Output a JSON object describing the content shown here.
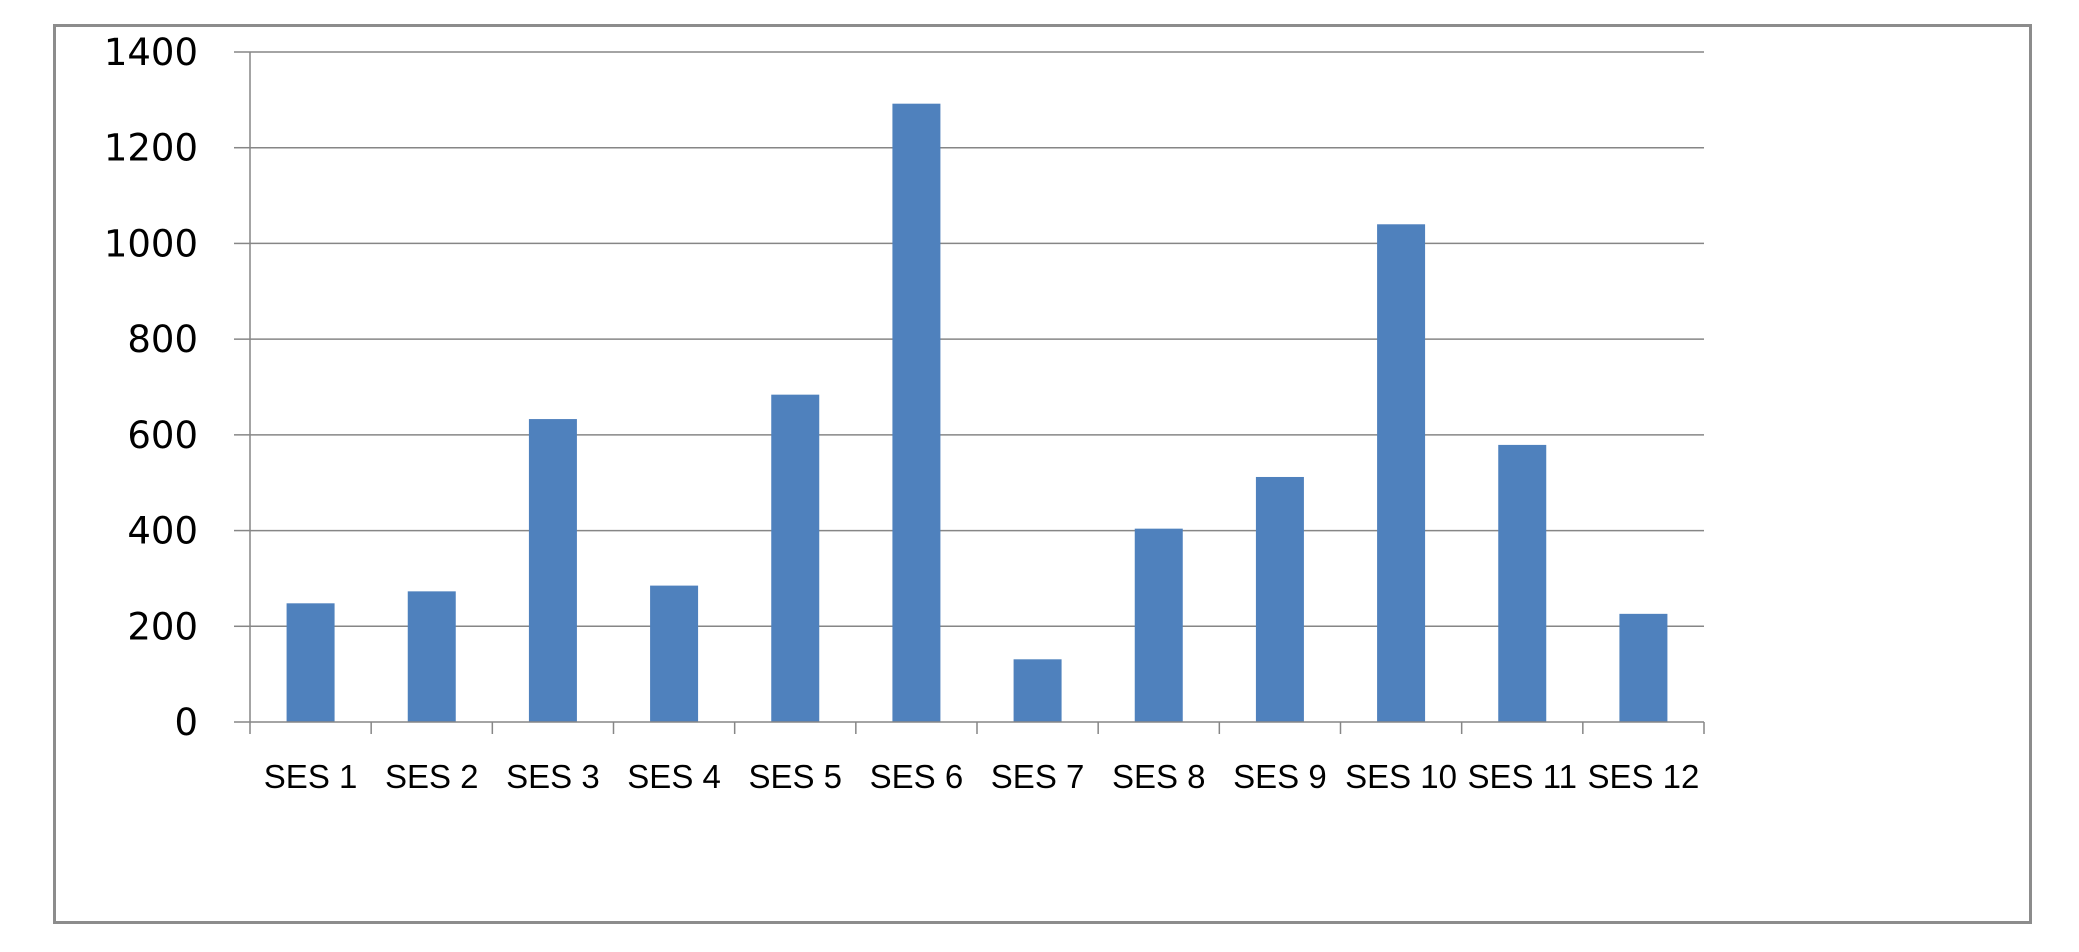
{
  "chart_data": {
    "type": "bar",
    "title": "",
    "xlabel": "",
    "ylabel": "",
    "categories": [
      "SES 1",
      "SES 2",
      "SES 3",
      "SES 4",
      "SES 5",
      "SES 6",
      "SES 7",
      "SES 8",
      "SES 9",
      "SES 10",
      "SES 11",
      "SES 12"
    ],
    "values": [
      248,
      273,
      633,
      285,
      684,
      1292,
      131,
      404,
      512,
      1040,
      579,
      226
    ],
    "ylim": [
      0,
      1400
    ],
    "yticks": [
      "0",
      "200",
      "400",
      "600",
      "800",
      "1000",
      "1200",
      "1400"
    ],
    "grid": true,
    "legend": "none",
    "colors": {
      "bar": "#4F81BD",
      "grid": "#868686",
      "axis": "#868686",
      "frame": "#8c8c8c"
    }
  }
}
